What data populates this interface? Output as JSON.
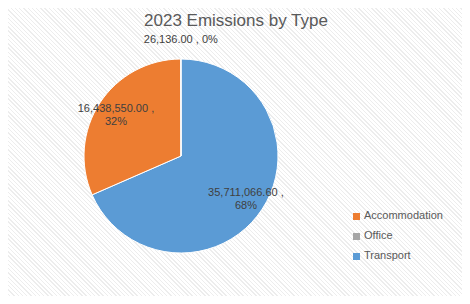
{
  "chart_data": {
    "type": "pie",
    "title": "2023 Emissions by Type",
    "categories": [
      "Transport",
      "Accommodation",
      "Office"
    ],
    "values": [
      35711066.6,
      16438550,
      26136
    ],
    "value_labels": [
      "35,711,066.60 , 68%",
      "16,438,550.00 , 32%",
      "26,136.00 , 0%"
    ],
    "colors": [
      "#5b9bd5",
      "#ed7d31",
      "#a5a5a5"
    ],
    "data_labels": true,
    "legend": "right"
  }
}
